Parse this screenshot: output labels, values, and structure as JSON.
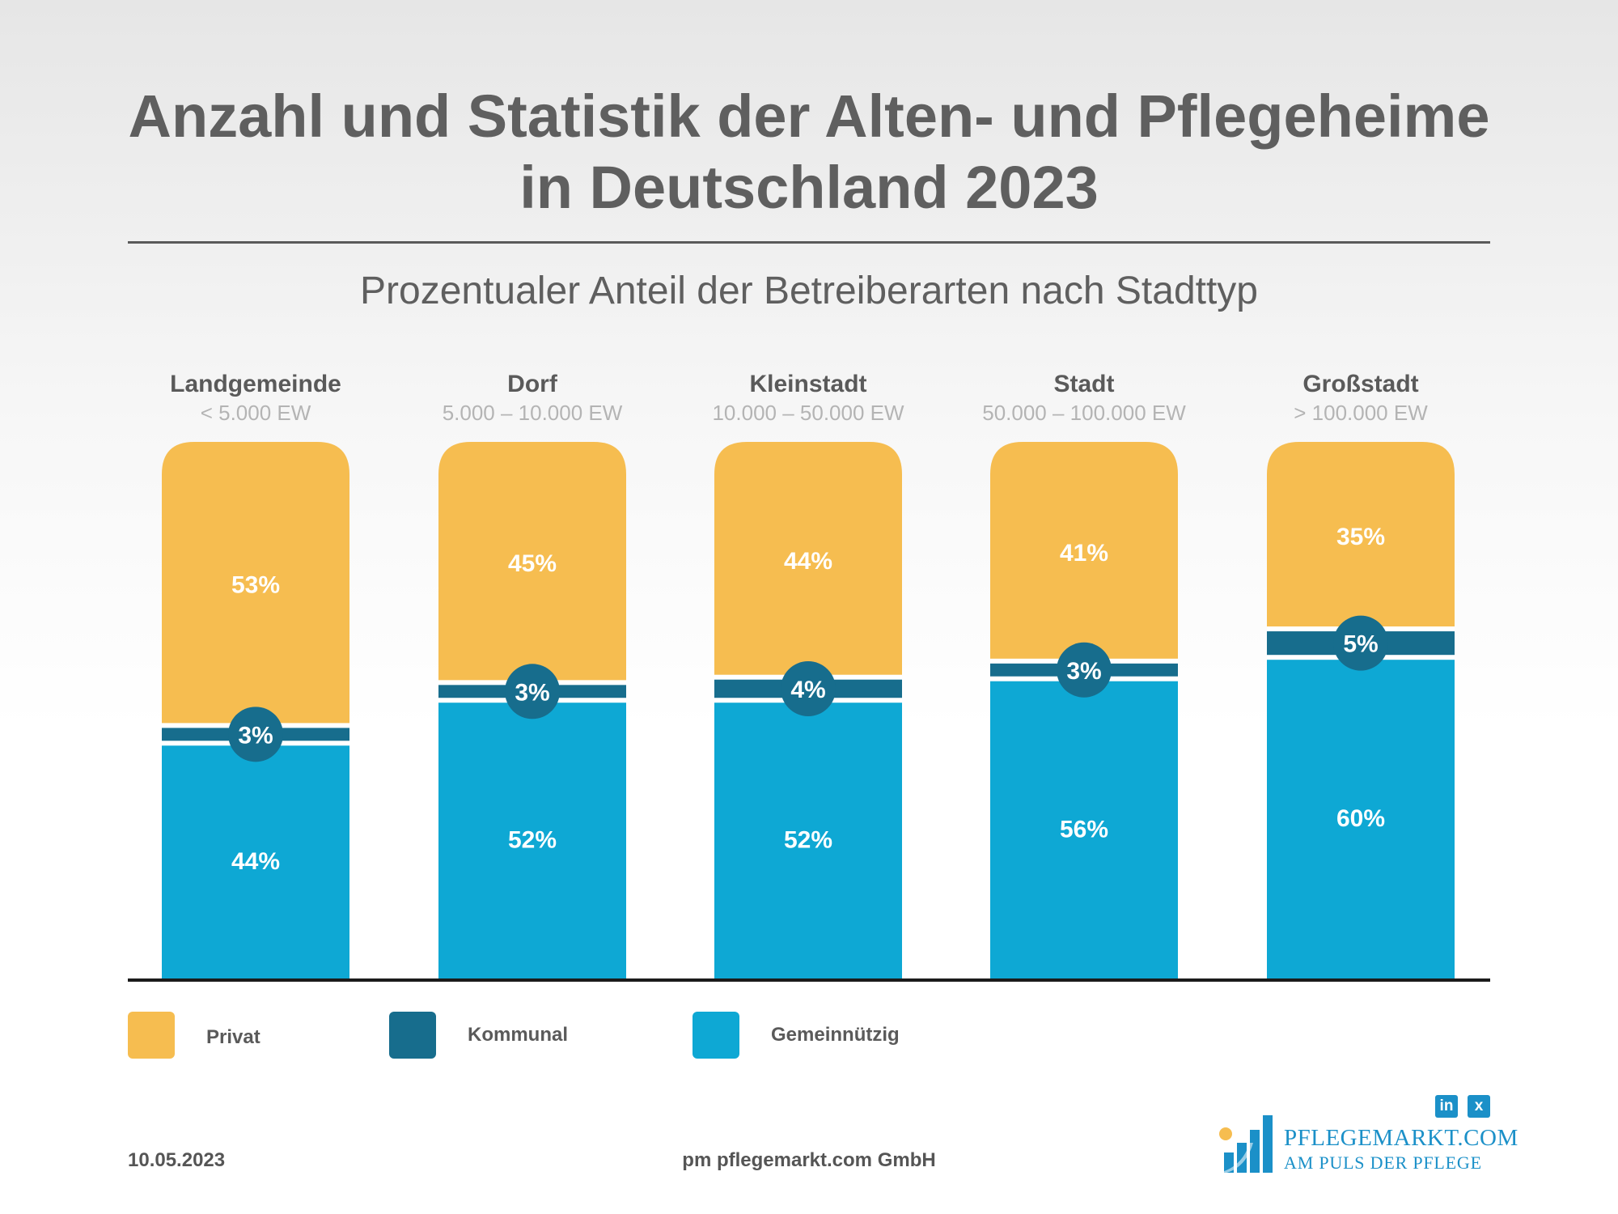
{
  "title_line1": "Anzahl und Statistik der Alten- und Pflegeheime",
  "title_line2": "in Deutschland 2023",
  "subtitle": "Prozentualer Anteil der Betreiberarten nach Stadttyp",
  "colors": {
    "privat": "#f6bd50",
    "kommunal": "#176d8d",
    "gemeinnuetzig": "#0ea8d4"
  },
  "chart_data": {
    "type": "bar",
    "stacked": true,
    "title": "Prozentualer Anteil der Betreiberarten nach Stadttyp",
    "categories": [
      "Landgemeinde",
      "Dorf",
      "Kleinstadt",
      "Stadt",
      "Großstadt"
    ],
    "category_sublabels": [
      "< 5.000 EW",
      "5.000 – 10.000 EW",
      "10.000 – 50.000 EW",
      "50.000 – 100.000 EW",
      "> 100.000 EW"
    ],
    "series": [
      {
        "name": "Gemeinnützig",
        "values": [
          44,
          52,
          52,
          56,
          60
        ]
      },
      {
        "name": "Kommunal",
        "values": [
          3,
          3,
          4,
          3,
          5
        ]
      },
      {
        "name": "Privat",
        "values": [
          53,
          45,
          44,
          41,
          35
        ]
      }
    ],
    "ylim": [
      0,
      100
    ],
    "unit": "%",
    "legend_position": "bottom-left"
  },
  "legend": [
    {
      "label": "Privat"
    },
    {
      "label": "Kommunal"
    },
    {
      "label": "Gemeinnützig"
    }
  ],
  "footer": {
    "date": "10.05.2023",
    "company": "pm pflegemarkt.com GmbH"
  },
  "logo": {
    "name": "PFLEGEMARKT.COM",
    "tagline": "AM PULS DER PFLEGE"
  },
  "social": {
    "linkedin": "in",
    "xing": "x"
  }
}
